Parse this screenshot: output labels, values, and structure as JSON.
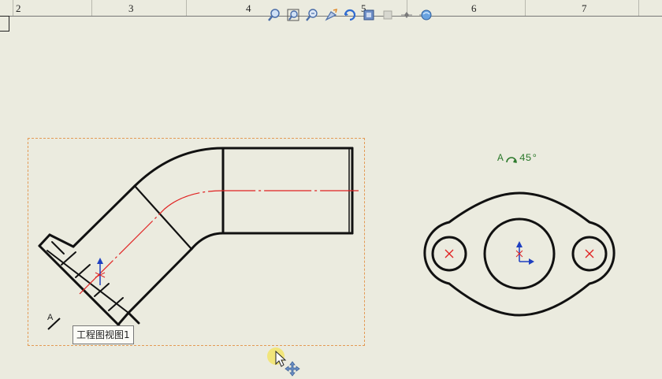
{
  "ruler": {
    "labels": [
      "2",
      "3",
      "4",
      "5",
      "6",
      "7"
    ]
  },
  "toolbar": {
    "icons": [
      "zoom-to-fit-icon",
      "zoom-to-area-icon",
      "zoom-in-out-icon",
      "pan-icon",
      "rotate-view-icon",
      "display-style-icon",
      "hide-show-icon",
      "view-orientation-icon",
      "apply-scene-icon"
    ]
  },
  "view": {
    "tooltip": "工程图视图1",
    "section_letter": "A"
  },
  "auxiliary_view": {
    "angle_letter": "A",
    "angle_value": "45°"
  },
  "colors": {
    "background": "#ebebdf",
    "geometry": "#111111",
    "centerline": "#e02020",
    "view_border": "#e39a55",
    "annotation": "#2d7a2d"
  }
}
